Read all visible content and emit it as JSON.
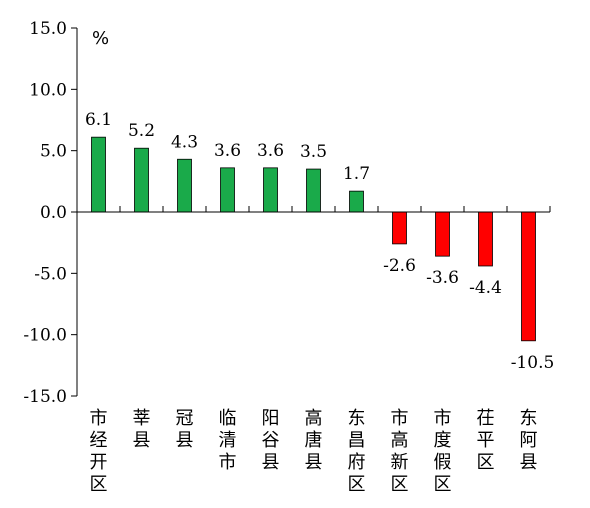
{
  "chart_data": {
    "type": "bar",
    "unit": "%",
    "categories": [
      "市经开区",
      "莘县",
      "冠县",
      "临清市",
      "阳谷县",
      "高唐县",
      "东昌府区",
      "市高新区",
      "市度假区",
      "茌平区",
      "东阿县"
    ],
    "values": [
      6.1,
      5.2,
      4.3,
      3.6,
      3.6,
      3.5,
      1.7,
      -2.6,
      -3.6,
      -4.4,
      -10.5
    ],
    "value_labels": [
      "6.1",
      "5.2",
      "4.3",
      "3.6",
      "3.6",
      "3.5",
      "1.7",
      "-2.6",
      "-3.6",
      "-4.4",
      "-10.5"
    ],
    "ylim": [
      -15,
      15
    ],
    "yticks": [
      15,
      10,
      5,
      0,
      -5,
      -10,
      -15
    ],
    "ytick_labels": [
      "15.0",
      "10.0",
      "5.0",
      "0.0",
      "-5.0",
      "-10.0",
      "-15.0"
    ],
    "colors": {
      "positive": "#1aaa4a",
      "negative": "#ff0000",
      "axis": "#000000"
    },
    "grid": false,
    "legend": "none"
  }
}
